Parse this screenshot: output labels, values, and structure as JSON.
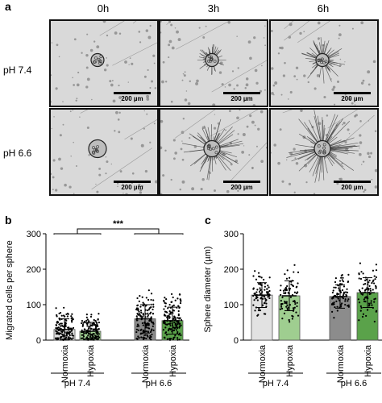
{
  "panel_a": {
    "letter": "a",
    "columns": [
      "0h",
      "3h",
      "6h"
    ],
    "rows": [
      "pH 7.4",
      "pH 6.6"
    ],
    "scale_label": "200 µm"
  },
  "chart_data": [
    {
      "type": "bar",
      "panel": "b",
      "title": "",
      "ylabel": "Migrated cells per sphere",
      "xlabel": "",
      "ylim": [
        0,
        300
      ],
      "yticks": [
        0,
        100,
        200,
        300
      ],
      "categories": [
        "Normoxia",
        "Hypoxia",
        "Normoxia",
        "Hypoxia"
      ],
      "groups": [
        {
          "label": "pH 7.4",
          "members": [
            0,
            1
          ]
        },
        {
          "label": "pH 6.6",
          "members": [
            2,
            3
          ]
        }
      ],
      "values": [
        30,
        25,
        60,
        55
      ],
      "errors": [
        30,
        25,
        40,
        38
      ],
      "bar_colors": [
        "#e2e2e2",
        "#9fce90",
        "#8c8c8c",
        "#5aa24a"
      ],
      "significance": "***",
      "grid": false
    },
    {
      "type": "bar",
      "panel": "c",
      "title": "",
      "ylabel": "Sphere diameter  (µm)",
      "xlabel": "",
      "ylim": [
        0,
        300
      ],
      "yticks": [
        0,
        100,
        200,
        300
      ],
      "categories": [
        "Normoxia",
        "Hypoxia",
        "Normoxia",
        "Hypoxia"
      ],
      "groups": [
        {
          "label": "pH 7.4",
          "members": [
            0,
            1
          ]
        },
        {
          "label": "pH 6.6",
          "members": [
            2,
            3
          ]
        }
      ],
      "values": [
        127,
        125,
        123,
        134
      ],
      "errors": [
        35,
        42,
        33,
        42
      ],
      "bar_colors": [
        "#e2e2e2",
        "#9fce90",
        "#8c8c8c",
        "#5aa24a"
      ],
      "grid": false
    }
  ]
}
